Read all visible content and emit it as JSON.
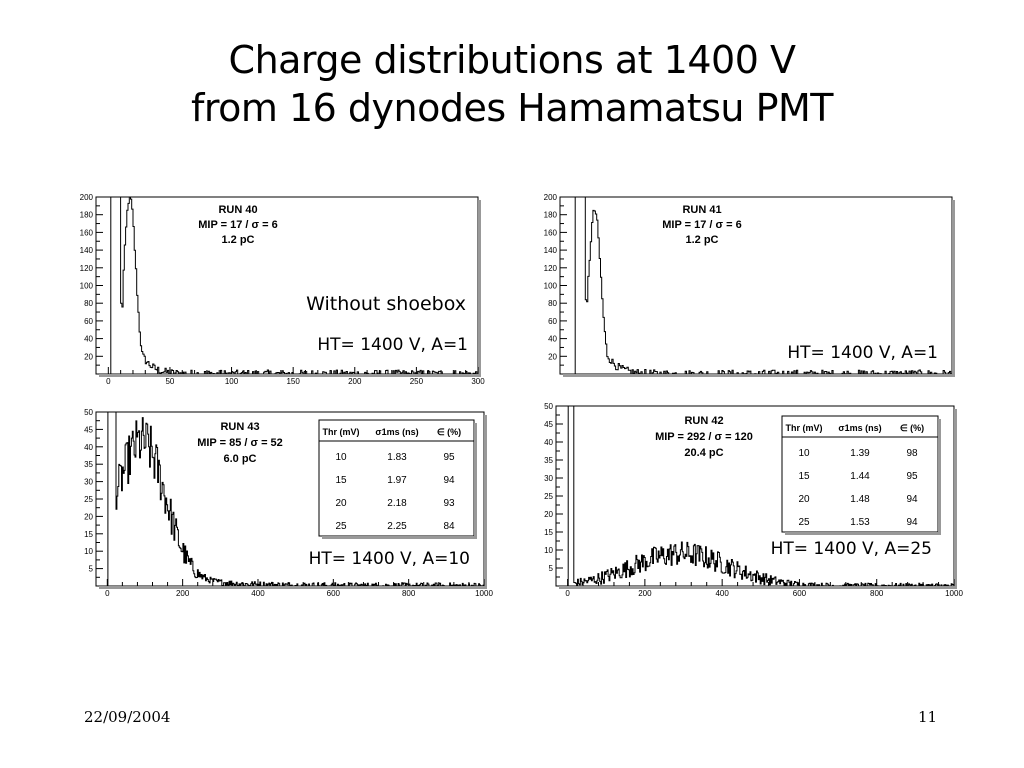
{
  "slide": {
    "title_line1": "Charge distributions at 1400 V",
    "title_line2": "from 16 dynodes Hamamatsu PMT",
    "date": "22/09/2004",
    "page_number": "11"
  },
  "chart_data": [
    {
      "id": "run40",
      "type": "histogram",
      "xlim": [
        -10,
        300
      ],
      "ylim": [
        0,
        200
      ],
      "xticks": [
        0,
        50,
        100,
        150,
        200,
        250,
        300
      ],
      "yticks": [
        20,
        40,
        60,
        80,
        100,
        120,
        140,
        160,
        180,
        200
      ],
      "stats": [
        "RUN 40",
        "MIP = 17 / σ = 6",
        "1.2 pC"
      ],
      "annotations": [
        "Without shoebox",
        "HT= 1400 V, A=1"
      ],
      "peak_y": 200,
      "shape": {
        "pedestal": 8,
        "dip": 11,
        "mip": 17,
        "sigma": 6
      }
    },
    {
      "id": "run41",
      "type": "histogram",
      "xlim": [
        -10,
        300
      ],
      "ylim": [
        0,
        200
      ],
      "xticks": [],
      "yticks": [
        20,
        40,
        60,
        80,
        100,
        120,
        140,
        160,
        180,
        200
      ],
      "stats": [
        "RUN 41",
        "MIP = 17 / σ = 6",
        "1.2 pC"
      ],
      "annotations": [
        "HT= 1400 V, A=1"
      ],
      "peak_y": 185,
      "shape": {
        "pedestal": 8,
        "dip": 11,
        "mip": 17,
        "sigma": 6
      }
    },
    {
      "id": "run43",
      "type": "histogram",
      "xlim": [
        -30,
        1000
      ],
      "ylim": [
        0,
        50
      ],
      "xticks": [
        0,
        200,
        400,
        600,
        800,
        1000
      ],
      "yticks": [
        5,
        10,
        15,
        20,
        25,
        30,
        35,
        40,
        45,
        50
      ],
      "stats": [
        "RUN 43",
        "MIP = 85 / σ = 52",
        "6.0 pC"
      ],
      "annotations": [
        "HT= 1400 V, A=10"
      ],
      "peak_y": 44,
      "shape": {
        "mip": 85,
        "sigma": 52
      },
      "table": {
        "headers": [
          "Thr (mV)",
          "σ1ms (ns)",
          "∈ (%)"
        ],
        "rows": [
          [
            "10",
            "1.83",
            "95"
          ],
          [
            "15",
            "1.97",
            "94"
          ],
          [
            "20",
            "2.18",
            "93"
          ],
          [
            "25",
            "2.25",
            "84"
          ]
        ]
      }
    },
    {
      "id": "run42",
      "type": "histogram",
      "xlim": [
        -30,
        1000
      ],
      "ylim": [
        0,
        50
      ],
      "xticks": [
        0,
        200,
        400,
        600,
        800,
        1000
      ],
      "yticks": [
        5,
        10,
        15,
        20,
        25,
        30,
        35,
        40,
        45,
        50
      ],
      "stats": [
        "RUN 42",
        "MIP = 292 / σ = 120",
        "20.4 pC"
      ],
      "annotations": [
        "HT= 1400 V, A=25"
      ],
      "peak_y": 12,
      "shape": {
        "mip": 292,
        "sigma": 120
      },
      "table": {
        "headers": [
          "Thr (mV)",
          "σ1ms (ns)",
          "∈ (%)"
        ],
        "rows": [
          [
            "10",
            "1.39",
            "98"
          ],
          [
            "15",
            "1.44",
            "95"
          ],
          [
            "20",
            "1.48",
            "94"
          ],
          [
            "25",
            "1.53",
            "94"
          ]
        ]
      }
    }
  ]
}
